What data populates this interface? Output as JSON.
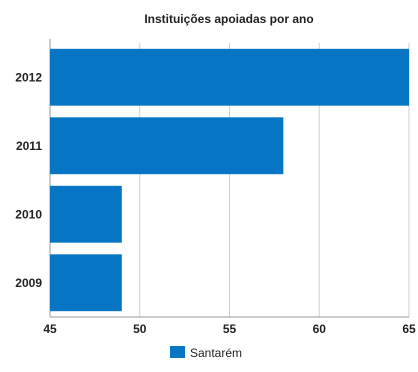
{
  "chart_data": {
    "type": "bar",
    "orientation": "horizontal",
    "title": "Instituições apoiadas por ano",
    "categories": [
      "2012",
      "2011",
      "2010",
      "2009"
    ],
    "series": [
      {
        "name": "Santarém",
        "values": [
          65,
          58,
          49,
          49
        ]
      }
    ],
    "xlim": [
      45,
      65
    ],
    "xticks": [
      "45",
      "50",
      "55",
      "60",
      "65"
    ],
    "grid": "vertical",
    "legend": "bottom-center",
    "colors": {
      "bar": "#0676C4",
      "grid": "#CFCFCF",
      "axis": "#9A9A9A",
      "text": "#222222"
    }
  }
}
